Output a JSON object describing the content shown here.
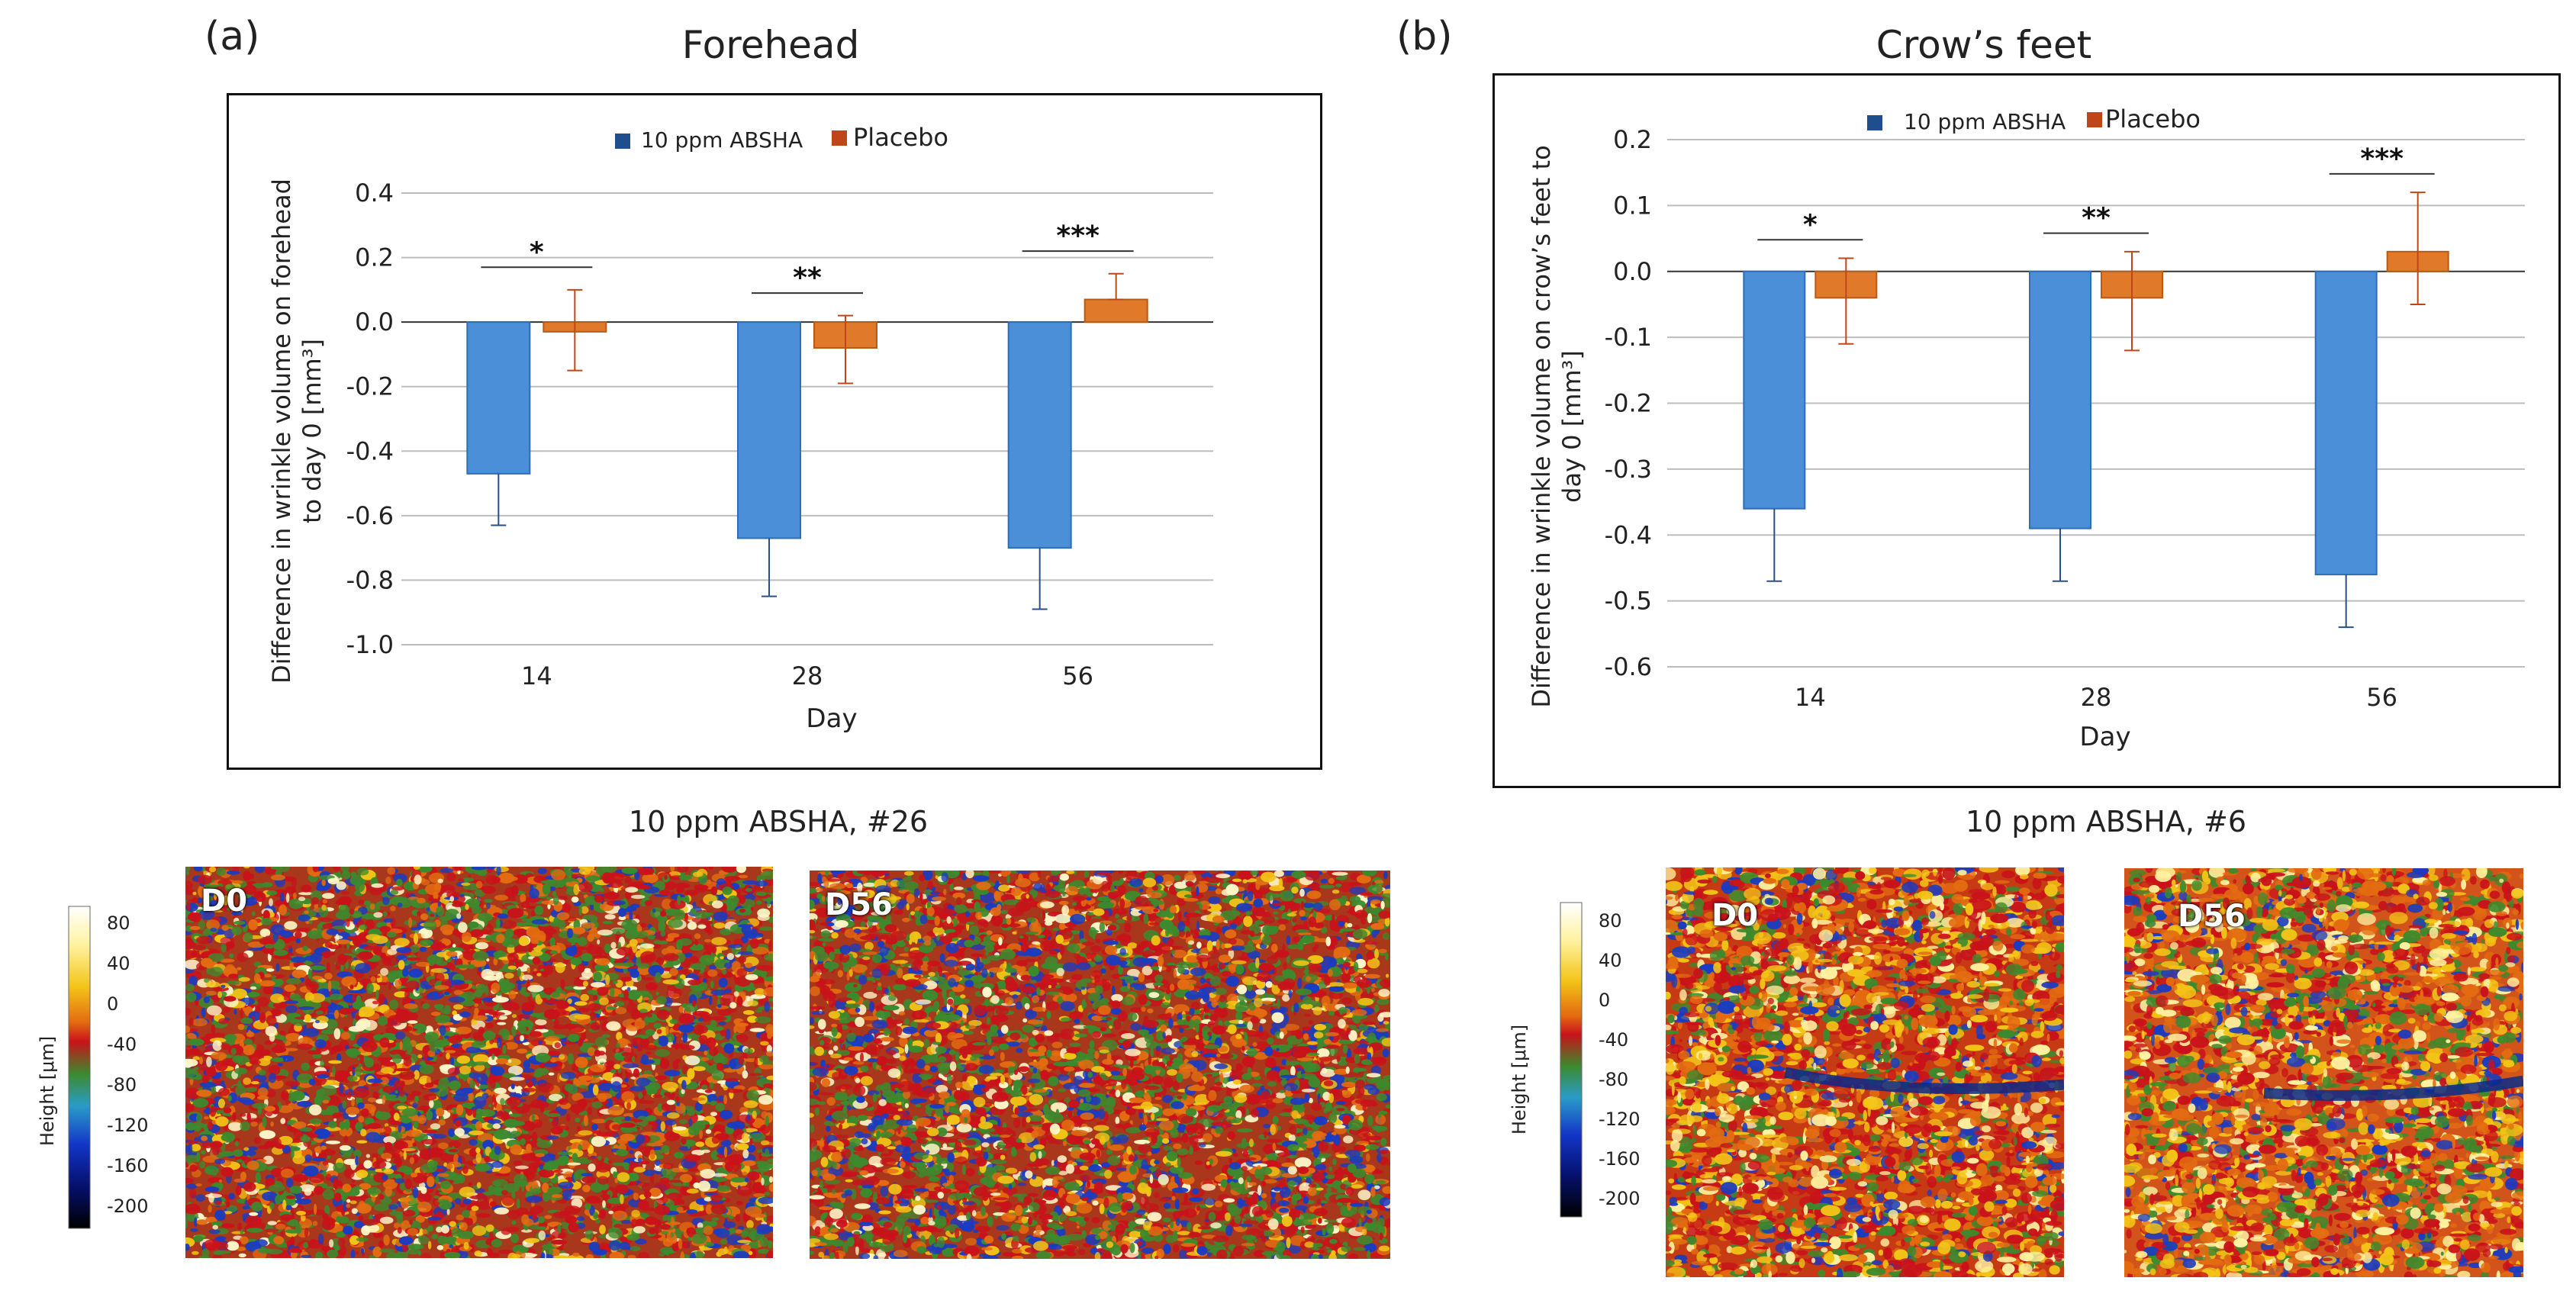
{
  "panel_a": {
    "letter": "(a)",
    "title": "Forehead",
    "legend": [
      "10 ppm ABSHA",
      "Placebo"
    ],
    "ylabel_line1": "Difference in wrinkle volume on forehead",
    "ylabel_line2": "to day 0 [mm³]",
    "xlabel": "Day",
    "caption": "10 ppm ABSHA, #26",
    "image_labels": [
      "D0",
      "D56"
    ]
  },
  "panel_b": {
    "letter": "(b)",
    "title": "Crow’s feet",
    "legend": [
      "10 ppm ABSHA",
      "Placebo"
    ],
    "ylabel_line1": "Difference in wrinkle volume on crow’s feet to",
    "ylabel_line2": "day 0 [mm³]",
    "xlabel": "Day",
    "caption": "10 ppm ABSHA, #6",
    "image_labels": [
      "D0",
      "D56"
    ]
  },
  "colorbar": {
    "label": "Height [μm]",
    "ticks": [
      "80",
      "40",
      "0",
      "-40",
      "-80",
      "-120",
      "-160",
      "-200"
    ]
  },
  "colors": {
    "absha": "#4a8fd8",
    "placebo": "#e07a2a",
    "absha_legend": "#1f4e8c",
    "placebo_legend": "#c0461a"
  },
  "chart_data": [
    {
      "type": "bar",
      "title": "Forehead",
      "categories": [
        "14",
        "28",
        "56"
      ],
      "xlabel": "Day",
      "ylabel": "Difference in wrinkle volume on forehead to day 0 [mm³]",
      "ylim": [
        -1.0,
        0.4
      ],
      "yticks": [
        "0.4",
        "0.2",
        "0.0",
        "-0.2",
        "-0.4",
        "-0.6",
        "-0.8",
        "-1.0"
      ],
      "ytick_values": [
        0.4,
        0.2,
        0.0,
        -0.2,
        -0.4,
        -0.6,
        -0.8,
        -1.0
      ],
      "series": [
        {
          "name": "10 ppm ABSHA",
          "values": [
            -0.47,
            -0.67,
            -0.7
          ],
          "err_low": [
            -0.63,
            -0.85,
            -0.89
          ],
          "err_high": [
            -0.47,
            -0.67,
            -0.7
          ]
        },
        {
          "name": "Placebo",
          "values": [
            -0.03,
            -0.08,
            0.07
          ],
          "err_low": [
            -0.15,
            -0.19,
            0.07
          ],
          "err_high": [
            0.1,
            0.02,
            0.15
          ]
        }
      ],
      "significance": [
        "*",
        "**",
        "***"
      ],
      "grid": true,
      "legend_position": "top"
    },
    {
      "type": "bar",
      "title": "Crow’s feet",
      "categories": [
        "14",
        "28",
        "56"
      ],
      "xlabel": "Day",
      "ylabel": "Difference in wrinkle volume on crow’s feet to day 0 [mm³]",
      "ylim": [
        -0.6,
        0.2
      ],
      "yticks": [
        "0.2",
        "0.1",
        "0.0",
        "-0.1",
        "-0.2",
        "-0.3",
        "-0.4",
        "-0.5",
        "-0.6"
      ],
      "ytick_values": [
        0.2,
        0.1,
        0.0,
        -0.1,
        -0.2,
        -0.3,
        -0.4,
        -0.5,
        -0.6
      ],
      "series": [
        {
          "name": "10 ppm ABSHA",
          "values": [
            -0.36,
            -0.39,
            -0.46
          ],
          "err_low": [
            -0.47,
            -0.47,
            -0.54
          ],
          "err_high": [
            -0.36,
            -0.39,
            -0.46
          ]
        },
        {
          "name": "Placebo",
          "values": [
            -0.04,
            -0.04,
            0.03
          ],
          "err_low": [
            -0.11,
            -0.12,
            -0.05
          ],
          "err_high": [
            0.02,
            0.03,
            0.12
          ]
        }
      ],
      "significance": [
        "*",
        "**",
        "***"
      ],
      "grid": true,
      "legend_position": "top"
    }
  ]
}
